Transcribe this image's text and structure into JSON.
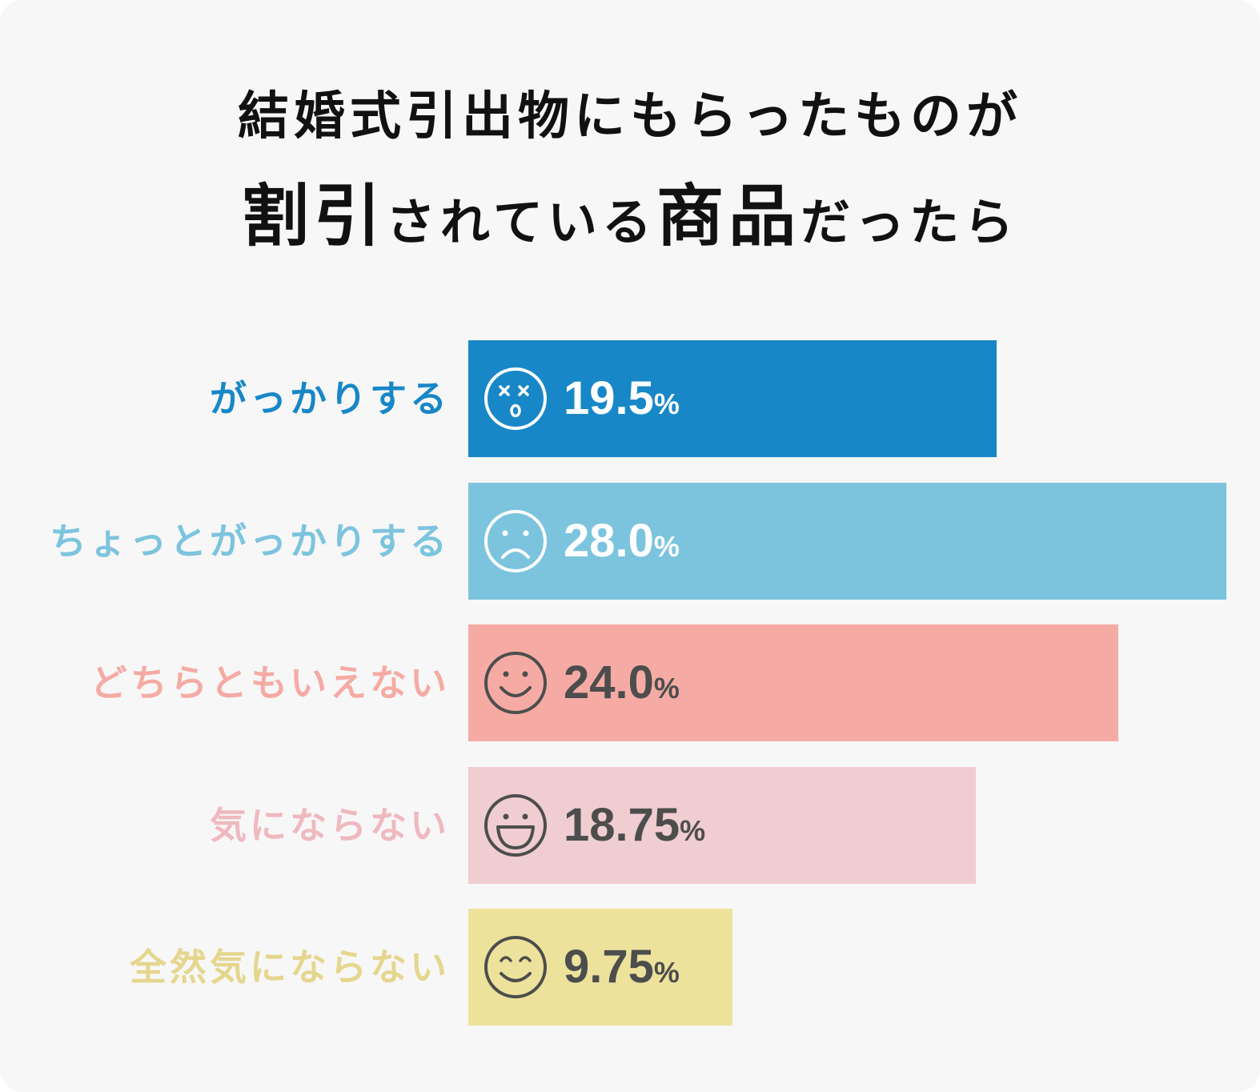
{
  "title": {
    "line1": "結婚式引出物にもらったものが",
    "line2_parts": [
      {
        "text": "割引",
        "size": "big"
      },
      {
        "text": "されている",
        "size": "small"
      },
      {
        "text": "商品",
        "size": "big"
      },
      {
        "text": "だったら",
        "size": "small"
      }
    ]
  },
  "chart_data": {
    "type": "bar",
    "orientation": "horizontal",
    "categories": [
      "がっかりする",
      "ちょっとがっかりする",
      "どちらともいえない",
      "気にならない",
      "全然気にならない"
    ],
    "values": [
      19.5,
      28.0,
      24.0,
      18.75,
      9.75
    ],
    "value_labels": [
      "19.5",
      "28.0",
      "24.0",
      "18.75",
      "9.75"
    ],
    "unit": "%",
    "xlim": [
      0,
      28.0
    ],
    "grid": false,
    "legend": "none",
    "colors": [
      "#1787c7",
      "#7cc4de",
      "#f5aba4",
      "#efcdd0",
      "#ede29c"
    ],
    "label_colors": [
      "#1787c7",
      "#7cc4de",
      "#f5aba4",
      "#efb9bf",
      "#e5d68e"
    ],
    "value_text_colors": [
      "#ffffff",
      "#ffffff",
      "#4d4d4d",
      "#4d4d4d",
      "#4d4d4d"
    ],
    "face_icons": [
      "dizzy-face-icon",
      "sad-face-icon",
      "smile-face-icon",
      "grin-face-icon",
      "happy-face-icon"
    ]
  }
}
